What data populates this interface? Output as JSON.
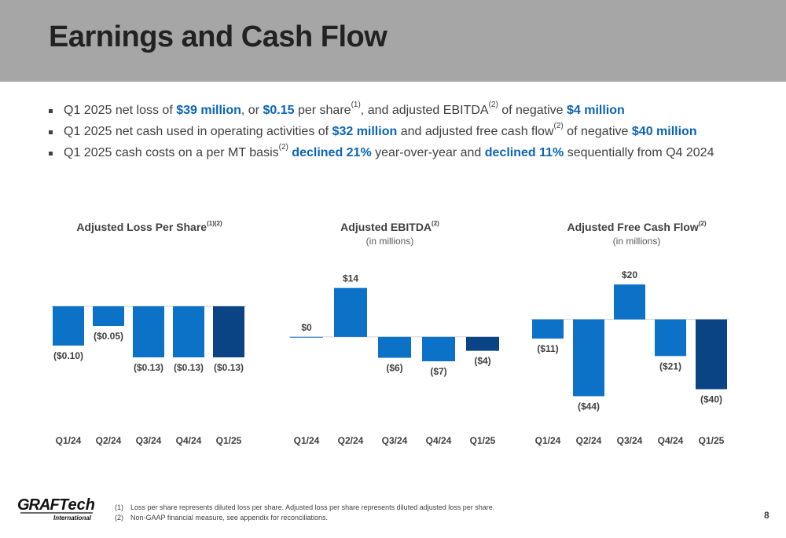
{
  "slide": {
    "title": "Earnings and Cash Flow",
    "page_number": "8"
  },
  "bullets": [
    {
      "segments": [
        {
          "t": "Q1 2025 net loss of ",
          "s": "n"
        },
        {
          "t": "$39 million",
          "s": "hl"
        },
        {
          "t": ", or ",
          "s": "n"
        },
        {
          "t": "$0.15",
          "s": "hl"
        },
        {
          "t": " per share",
          "s": "n"
        },
        {
          "t": "(1)",
          "s": "sup"
        },
        {
          "t": ", and adjusted EBITDA",
          "s": "n"
        },
        {
          "t": "(2)",
          "s": "sup"
        },
        {
          "t": " of negative ",
          "s": "n"
        },
        {
          "t": "$4 million",
          "s": "hl"
        }
      ]
    },
    {
      "segments": [
        {
          "t": "Q1 2025 net cash used in operating activities of ",
          "s": "n"
        },
        {
          "t": "$32 million",
          "s": "hl"
        },
        {
          "t": " and adjusted free cash flow",
          "s": "n"
        },
        {
          "t": "(2)",
          "s": "sup"
        },
        {
          "t": " of negative ",
          "s": "n"
        },
        {
          "t": "$40 million",
          "s": "hl"
        }
      ]
    },
    {
      "segments": [
        {
          "t": "Q1 2025 cash costs on a per MT basis",
          "s": "n"
        },
        {
          "t": "(2)",
          "s": "sup"
        },
        {
          "t": " declined 21%",
          "s": "hl"
        },
        {
          "t": " year-over-year and ",
          "s": "n"
        },
        {
          "t": "declined 11%",
          "s": "hl"
        },
        {
          "t": " sequentially from Q4 2024",
          "s": "n"
        }
      ]
    }
  ],
  "colors": {
    "bar": "#0b72c8",
    "bar_latest": "#0a4485",
    "highlight": "#0b64b5",
    "header": "#a6a6a6"
  },
  "chart_data": [
    {
      "type": "bar",
      "title": "Adjusted Loss Per Share",
      "title_sup": "(1)(2)",
      "subtitle": "",
      "categories": [
        "Q1/24",
        "Q2/24",
        "Q3/24",
        "Q4/24",
        "Q1/25"
      ],
      "values": [
        -0.1,
        -0.05,
        -0.13,
        -0.13,
        -0.13
      ],
      "labels": [
        "($0.10)",
        "($0.05)",
        "($0.13)",
        "($0.13)",
        "($0.13)"
      ],
      "ylim": [
        -0.3,
        0.1
      ]
    },
    {
      "type": "bar",
      "title": "Adjusted EBITDA",
      "title_sup": "(2)",
      "subtitle": "(in millions)",
      "categories": [
        "Q1/24",
        "Q2/24",
        "Q3/24",
        "Q4/24",
        "Q1/25"
      ],
      "values": [
        0,
        14,
        -6,
        -7,
        -4
      ],
      "labels": [
        "$0",
        "$14",
        "($6)",
        "($7)",
        "($4)"
      ],
      "ylim": [
        -25,
        20
      ]
    },
    {
      "type": "bar",
      "title": "Adjusted Free Cash Flow",
      "title_sup": "(2)",
      "subtitle": "(in millions)",
      "categories": [
        "Q1/24",
        "Q2/24",
        "Q3/24",
        "Q4/24",
        "Q1/25"
      ],
      "values": [
        -11,
        -44,
        20,
        -21,
        -40
      ],
      "labels": [
        "($11)",
        "($44)",
        "$20",
        "($21)",
        "($40)"
      ],
      "ylim": [
        -60,
        30
      ]
    }
  ],
  "logo": {
    "word1": "GRAF",
    "word2": "Tech",
    "word3": "International"
  },
  "footnotes": [
    {
      "num": "(1)",
      "text": "Loss per share represents diluted loss per share. Adjusted loss per share represents diluted adjusted loss per share."
    },
    {
      "num": "(2)",
      "text": "Non-GAAP financial measure, see appendix for reconciliations."
    }
  ]
}
